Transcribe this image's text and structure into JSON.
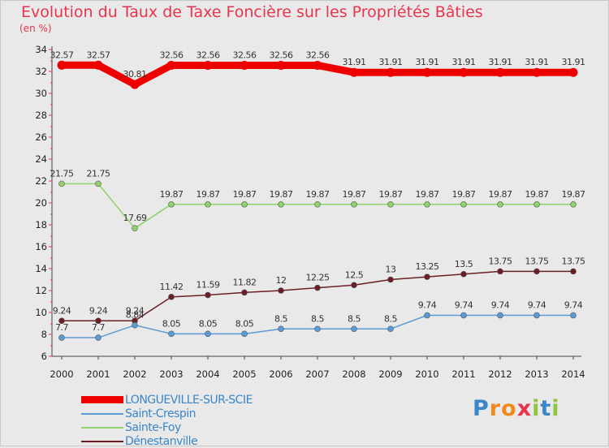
{
  "chart_data": {
    "type": "line",
    "title": "Evolution du Taux de Taxe Foncière sur les Propriétés Bâties",
    "unit_label": "(en %)",
    "categories": [
      "2000",
      "2001",
      "2002",
      "2003",
      "2004",
      "2005",
      "2006",
      "2007",
      "2008",
      "2009",
      "2010",
      "2011",
      "2012",
      "2013",
      "2014"
    ],
    "ylim": [
      6,
      34
    ],
    "yticks": [
      6,
      8,
      10,
      12,
      14,
      16,
      18,
      20,
      22,
      24,
      26,
      28,
      30,
      32,
      34
    ],
    "grid": false,
    "legend_position": "bottom-left",
    "series": [
      {
        "name": "LONGUEVILLE-SUR-SCIE",
        "color": "#ee0000",
        "values": [
          32.57,
          32.57,
          30.81,
          32.56,
          32.56,
          32.56,
          32.56,
          32.56,
          31.91,
          31.91,
          31.91,
          31.91,
          31.91,
          31.91,
          31.91
        ],
        "labels": [
          "32.57",
          "32.57",
          "30.81",
          "32.56",
          "32.56",
          "32.56",
          "32.56",
          "32.56",
          "31.91",
          "31.91",
          "31.91",
          "31.91",
          "31.91",
          "31.91",
          "31.91"
        ]
      },
      {
        "name": "Saint-Crespin",
        "color": "#5b9bd5",
        "values": [
          7.7,
          7.7,
          8.84,
          8.05,
          8.05,
          8.05,
          8.5,
          8.5,
          8.5,
          8.5,
          9.74,
          9.74,
          9.74,
          9.74,
          9.74
        ],
        "labels": [
          "7.7",
          "7.7",
          "8.84",
          "8.05",
          "8.05",
          "8.05",
          "8.5",
          "8.5",
          "8.5",
          "8.5",
          "9.74",
          "9.74",
          "9.74",
          "9.74",
          "9.74"
        ]
      },
      {
        "name": "Sainte-Foy",
        "color": "#8fd16a",
        "values": [
          21.75,
          21.75,
          17.69,
          19.87,
          19.87,
          19.87,
          19.87,
          19.87,
          19.87,
          19.87,
          19.87,
          19.87,
          19.87,
          19.87,
          19.87
        ],
        "labels": [
          "21.75",
          "21.75",
          "17.69",
          "19.87",
          "19.87",
          "19.87",
          "19.87",
          "19.87",
          "19.87",
          "19.87",
          "19.87",
          "19.87",
          "19.87",
          "19.87",
          "19.87"
        ]
      },
      {
        "name": "Dénestanville",
        "color": "#6b1f24",
        "values": [
          9.24,
          9.24,
          9.24,
          11.42,
          11.59,
          11.82,
          12,
          12.25,
          12.5,
          13,
          13.25,
          13.5,
          13.75,
          13.75,
          13.75
        ],
        "labels": [
          "9.24",
          "9.24",
          "9.24",
          "11.42",
          "11.59",
          "11.82",
          "12",
          "12.25",
          "12.5",
          "13",
          "13.25",
          "13.5",
          "13.75",
          "13.75",
          "13.75"
        ]
      }
    ]
  },
  "brand": {
    "letters": [
      "P",
      "r",
      "o",
      "x",
      "i",
      "t",
      "i"
    ],
    "colors": [
      "#3a86c8",
      "#f08a1c",
      "#f08a1c",
      "#e8354d",
      "#8fc640",
      "#3a86c8",
      "#8fc640"
    ]
  }
}
